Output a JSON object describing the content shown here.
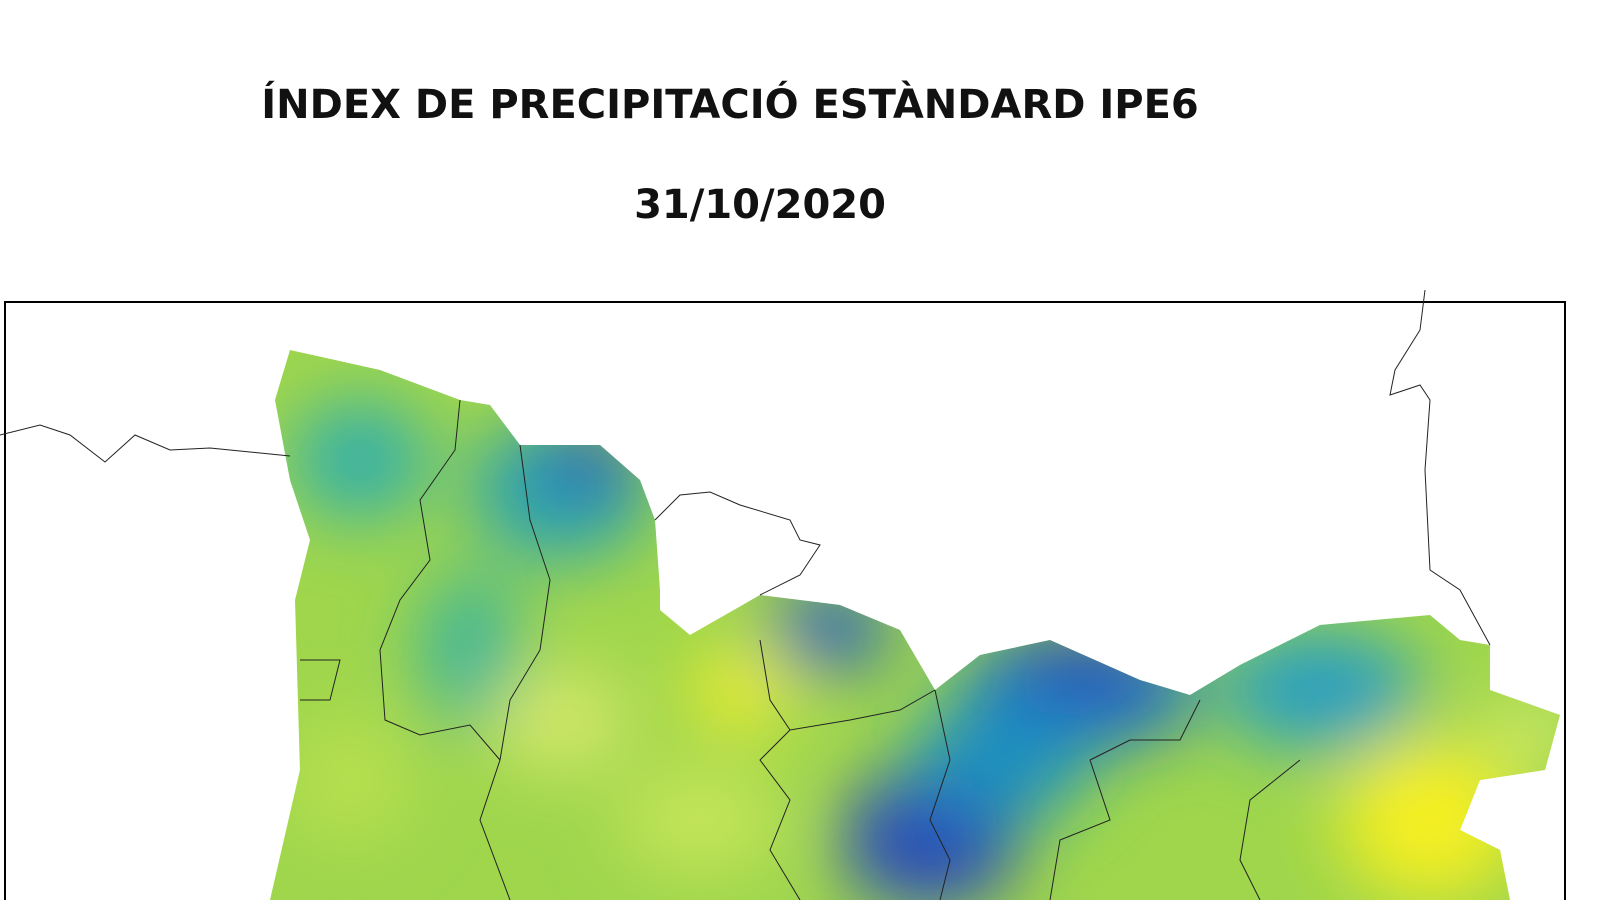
{
  "header": {
    "title": "ÍNDEX DE PRECIPITACIÓ ESTÀNDARD IPE6",
    "date": "31/10/2020"
  }
}
